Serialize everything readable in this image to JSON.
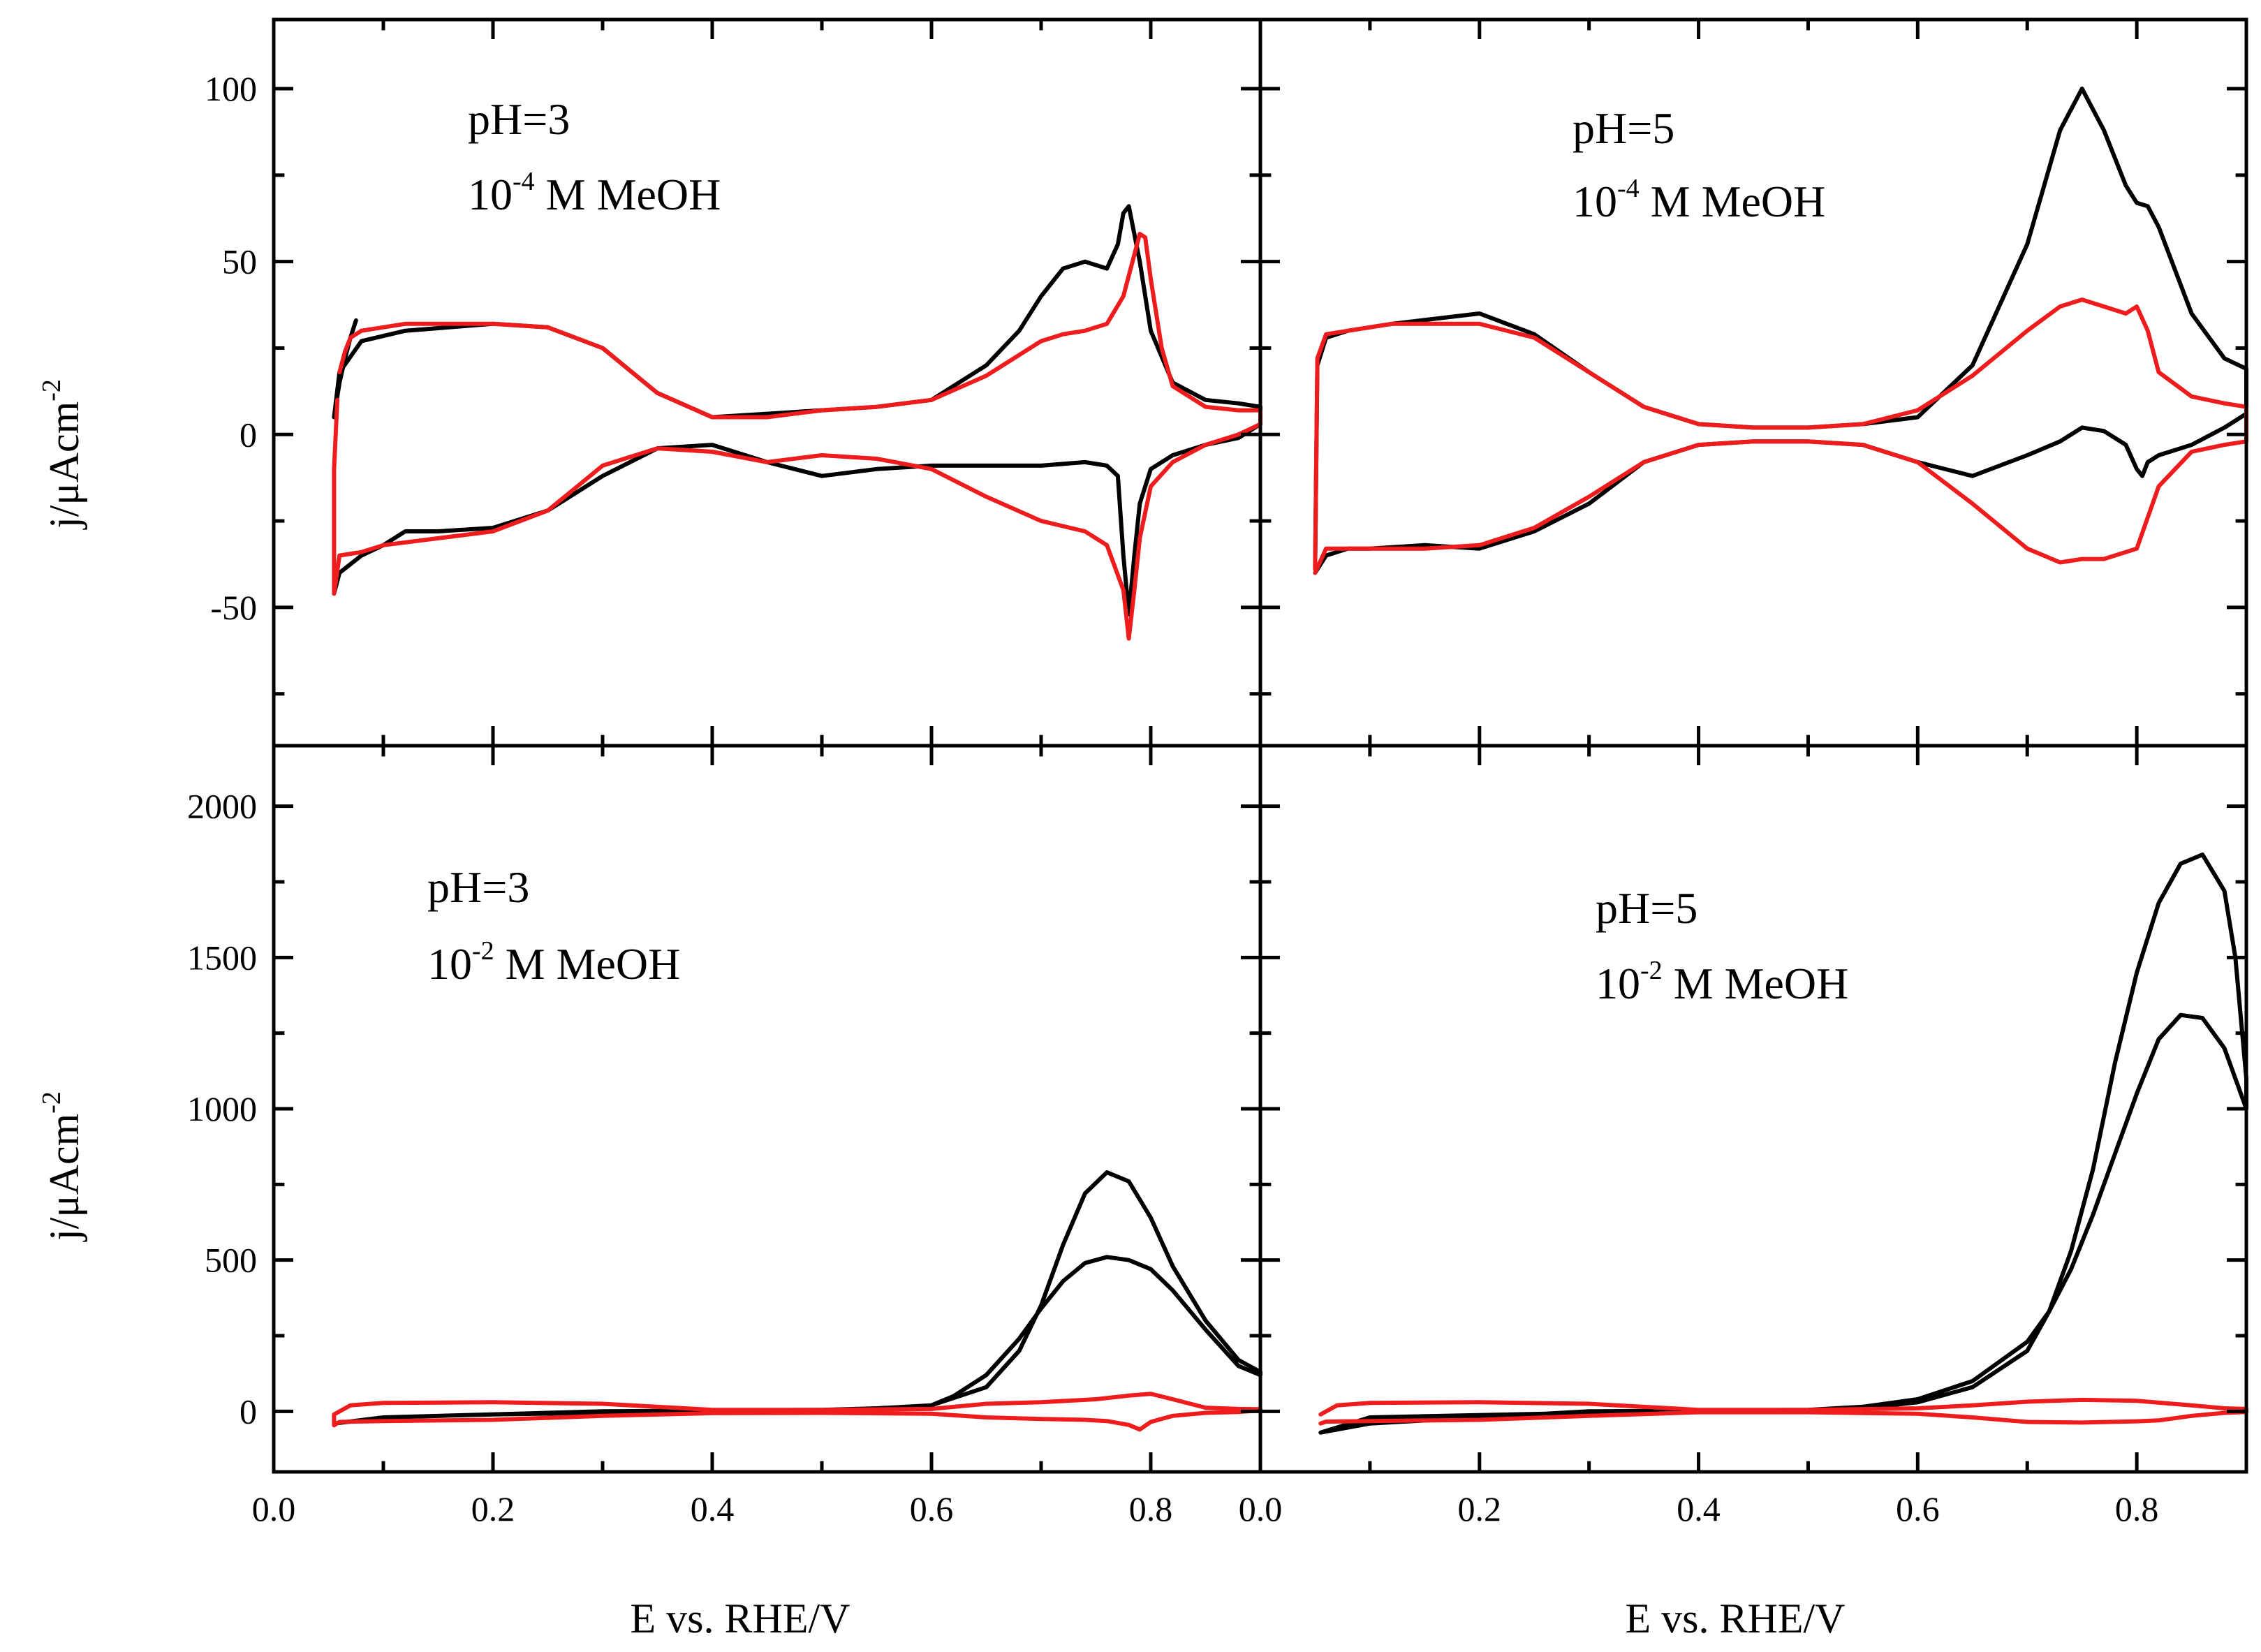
{
  "figure": {
    "x_axis_title": "E vs. RHE/V",
    "y_axis_title_main": "j/μAcm",
    "y_axis_title_sup": "-2"
  },
  "colors": {
    "series_a": "#000000",
    "series_b": "#ee1c1c"
  },
  "chart_data": [
    {
      "type": "line",
      "panel": "top-left",
      "label_line1": "pH=3",
      "label_line2_base": "10",
      "label_line2_sup": "-4",
      "label_line2_rest": " M MeOH",
      "xlim": [
        0.0,
        0.9
      ],
      "ylim": [
        -90,
        120
      ],
      "xticks": [],
      "xtick_labels": [],
      "yticks": [
        -50,
        0,
        50,
        100
      ],
      "ytick_labels": [
        "-50",
        "0",
        "50",
        "100"
      ],
      "series": [
        {
          "name": "black",
          "color": "#000000",
          "x": [
            0.075,
            0.07,
            0.065,
            0.06,
            0.055,
            0.06,
            0.08,
            0.12,
            0.2,
            0.25,
            0.3,
            0.35,
            0.4,
            0.45,
            0.5,
            0.55,
            0.6,
            0.65,
            0.68,
            0.7,
            0.72,
            0.74,
            0.76,
            0.77,
            0.775,
            0.78,
            0.79,
            0.8,
            0.82,
            0.85,
            0.88,
            0.9,
            0.9,
            0.88,
            0.85,
            0.82,
            0.8,
            0.79,
            0.785,
            0.78,
            0.775,
            0.77,
            0.76,
            0.74,
            0.7,
            0.65,
            0.6,
            0.55,
            0.5,
            0.45,
            0.4,
            0.35,
            0.3,
            0.25,
            0.2,
            0.15,
            0.12,
            0.1,
            0.08,
            0.06,
            0.055
          ],
          "y": [
            33,
            28,
            22,
            15,
            5,
            18,
            27,
            30,
            32,
            31,
            25,
            12,
            5,
            6,
            7,
            8,
            10,
            20,
            30,
            40,
            48,
            50,
            48,
            55,
            64,
            66,
            50,
            30,
            15,
            10,
            9,
            8,
            3,
            -1,
            -3,
            -6,
            -10,
            -20,
            -35,
            -52,
            -35,
            -12,
            -9,
            -8,
            -9,
            -9,
            -9,
            -10,
            -12,
            -8,
            -3,
            -4,
            -12,
            -22,
            -27,
            -28,
            -28,
            -32,
            -35,
            -40,
            -46
          ]
        },
        {
          "name": "red",
          "color": "#ee1c1c",
          "x": [
            0.06,
            0.065,
            0.07,
            0.08,
            0.12,
            0.2,
            0.25,
            0.3,
            0.35,
            0.4,
            0.45,
            0.5,
            0.55,
            0.6,
            0.65,
            0.68,
            0.7,
            0.72,
            0.74,
            0.76,
            0.775,
            0.785,
            0.79,
            0.795,
            0.8,
            0.81,
            0.82,
            0.85,
            0.88,
            0.9,
            0.9,
            0.88,
            0.85,
            0.82,
            0.8,
            0.79,
            0.785,
            0.78,
            0.775,
            0.76,
            0.74,
            0.7,
            0.65,
            0.6,
            0.55,
            0.5,
            0.45,
            0.4,
            0.35,
            0.3,
            0.25,
            0.2,
            0.15,
            0.1,
            0.08,
            0.06,
            0.055,
            0.055,
            0.058
          ],
          "y": [
            18,
            24,
            28,
            30,
            32,
            32,
            31,
            25,
            12,
            5,
            5,
            7,
            8,
            10,
            17,
            23,
            27,
            29,
            30,
            32,
            40,
            52,
            58,
            57,
            45,
            25,
            14,
            8,
            7,
            7,
            3,
            0,
            -3,
            -8,
            -15,
            -30,
            -45,
            -59,
            -45,
            -32,
            -28,
            -25,
            -18,
            -10,
            -7,
            -6,
            -8,
            -5,
            -4,
            -9,
            -22,
            -28,
            -30,
            -32,
            -34,
            -35,
            -46,
            -10,
            10
          ]
        }
      ]
    },
    {
      "type": "line",
      "panel": "top-right",
      "label_line1": "pH=5",
      "label_line2_base": "10",
      "label_line2_sup": "-4",
      "label_line2_rest": " M MeOH",
      "xlim": [
        0.0,
        0.9
      ],
      "ylim": [
        -90,
        120
      ],
      "xticks": [],
      "xtick_labels": [],
      "yticks": [
        -50,
        0,
        50,
        100
      ],
      "ytick_labels": [],
      "series": [
        {
          "name": "black",
          "color": "#000000",
          "x": [
            0.05,
            0.052,
            0.06,
            0.08,
            0.12,
            0.2,
            0.25,
            0.3,
            0.35,
            0.4,
            0.45,
            0.5,
            0.55,
            0.6,
            0.65,
            0.7,
            0.73,
            0.75,
            0.77,
            0.79,
            0.8,
            0.81,
            0.82,
            0.85,
            0.88,
            0.9,
            0.9,
            0.88,
            0.85,
            0.82,
            0.81,
            0.805,
            0.8,
            0.79,
            0.77,
            0.75,
            0.73,
            0.7,
            0.65,
            0.6,
            0.55,
            0.5,
            0.45,
            0.4,
            0.35,
            0.3,
            0.25,
            0.2,
            0.15,
            0.1,
            0.08,
            0.06,
            0.05
          ],
          "y": [
            -38,
            20,
            28,
            30,
            32,
            35,
            29,
            18,
            8,
            3,
            2,
            2,
            3,
            5,
            20,
            55,
            88,
            100,
            88,
            72,
            67,
            66,
            60,
            35,
            22,
            19,
            6,
            2,
            -3,
            -6,
            -8,
            -12,
            -10,
            -3,
            1,
            2,
            -2,
            -6,
            -12,
            -8,
            -3,
            -2,
            -2,
            -3,
            -8,
            -20,
            -28,
            -33,
            -32,
            -33,
            -33,
            -35,
            -40
          ]
        },
        {
          "name": "red",
          "color": "#ee1c1c",
          "x": [
            0.05,
            0.052,
            0.06,
            0.08,
            0.12,
            0.2,
            0.25,
            0.3,
            0.35,
            0.4,
            0.45,
            0.5,
            0.55,
            0.6,
            0.65,
            0.7,
            0.73,
            0.75,
            0.77,
            0.79,
            0.8,
            0.81,
            0.82,
            0.85,
            0.88,
            0.9,
            0.9,
            0.88,
            0.85,
            0.82,
            0.8,
            0.79,
            0.77,
            0.75,
            0.73,
            0.7,
            0.65,
            0.6,
            0.55,
            0.5,
            0.45,
            0.4,
            0.35,
            0.3,
            0.25,
            0.2,
            0.15,
            0.1,
            0.08,
            0.06,
            0.05
          ],
          "y": [
            -39,
            22,
            29,
            30,
            32,
            32,
            28,
            18,
            8,
            3,
            2,
            2,
            3,
            7,
            17,
            30,
            37,
            39,
            37,
            35,
            37,
            30,
            18,
            11,
            9,
            8,
            -2,
            -3,
            -5,
            -15,
            -33,
            -34,
            -36,
            -36,
            -37,
            -33,
            -20,
            -8,
            -3,
            -2,
            -2,
            -3,
            -8,
            -18,
            -27,
            -32,
            -33,
            -33,
            -33,
            -33,
            -40
          ]
        }
      ]
    },
    {
      "type": "line",
      "panel": "bottom-left",
      "label_line1": "pH=3",
      "label_line2_base": "10",
      "label_line2_sup": "-2",
      "label_line2_rest": " M MeOH",
      "xlim": [
        0.0,
        0.9
      ],
      "ylim": [
        -200,
        2200
      ],
      "xticks": [
        0.0,
        0.2,
        0.4,
        0.6,
        0.8
      ],
      "xtick_labels": [
        "0.0",
        "0.2",
        "0.4",
        "0.6",
        "0.8"
      ],
      "yticks": [
        0,
        500,
        1000,
        1500,
        2000
      ],
      "ytick_labels": [
        "0",
        "500",
        "1000",
        "1500",
        "2000"
      ],
      "series": [
        {
          "name": "black",
          "color": "#000000",
          "x": [
            0.08,
            0.055,
            0.1,
            0.3,
            0.5,
            0.55,
            0.6,
            0.65,
            0.68,
            0.7,
            0.72,
            0.74,
            0.76,
            0.78,
            0.8,
            0.82,
            0.85,
            0.88,
            0.9,
            0.9,
            0.88,
            0.85,
            0.82,
            0.8,
            0.78,
            0.76,
            0.74,
            0.72,
            0.7,
            0.68,
            0.65,
            0.62,
            0.6,
            0.55,
            0.5,
            0.4,
            0.3,
            0.2,
            0.1,
            0.055
          ],
          "y": [
            -30,
            -40,
            -20,
            0,
            5,
            10,
            20,
            80,
            200,
            350,
            550,
            720,
            790,
            760,
            640,
            480,
            300,
            170,
            130,
            120,
            150,
            270,
            400,
            470,
            500,
            510,
            490,
            430,
            340,
            240,
            120,
            50,
            20,
            5,
            2,
            0,
            -5,
            -10,
            -20,
            -40
          ]
        },
        {
          "name": "red",
          "color": "#ee1c1c",
          "x": [
            0.055,
            0.07,
            0.1,
            0.2,
            0.3,
            0.4,
            0.5,
            0.6,
            0.65,
            0.7,
            0.75,
            0.78,
            0.8,
            0.82,
            0.85,
            0.88,
            0.9,
            0.9,
            0.88,
            0.85,
            0.82,
            0.8,
            0.79,
            0.78,
            0.76,
            0.74,
            0.7,
            0.65,
            0.6,
            0.5,
            0.4,
            0.3,
            0.2,
            0.1,
            0.06,
            0.055,
            0.055
          ],
          "y": [
            -10,
            20,
            28,
            30,
            25,
            5,
            5,
            8,
            25,
            30,
            40,
            52,
            58,
            40,
            12,
            8,
            7,
            3,
            -2,
            -5,
            -15,
            -35,
            -60,
            -45,
            -32,
            -28,
            -25,
            -20,
            -8,
            -5,
            -6,
            -15,
            -28,
            -32,
            -35,
            -46,
            -10
          ]
        }
      ]
    },
    {
      "type": "line",
      "panel": "bottom-right",
      "label_line1": "pH=5",
      "label_line2_base": "10",
      "label_line2_sup": "-2",
      "label_line2_rest": " M MeOH",
      "xlim": [
        0.0,
        0.9
      ],
      "ylim": [
        -200,
        2200
      ],
      "xticks": [
        0.0,
        0.2,
        0.4,
        0.6,
        0.8
      ],
      "xtick_labels": [
        "0.0",
        "0.2",
        "0.4",
        "0.6",
        "0.8"
      ],
      "yticks": [
        0,
        500,
        1000,
        1500,
        2000
      ],
      "ytick_labels": [],
      "series": [
        {
          "name": "black",
          "color": "#000000",
          "x": [
            0.09,
            0.055,
            0.1,
            0.3,
            0.5,
            0.55,
            0.6,
            0.65,
            0.7,
            0.72,
            0.74,
            0.76,
            0.78,
            0.8,
            0.82,
            0.84,
            0.86,
            0.88,
            0.89,
            0.9,
            0.9,
            0.89,
            0.88,
            0.86,
            0.84,
            0.82,
            0.8,
            0.78,
            0.76,
            0.74,
            0.72,
            0.7,
            0.65,
            0.6,
            0.55,
            0.5,
            0.3,
            0.1,
            0.055
          ],
          "y": [
            -40,
            -70,
            -40,
            0,
            5,
            10,
            30,
            80,
            200,
            330,
            530,
            800,
            1150,
            1450,
            1680,
            1810,
            1840,
            1720,
            1500,
            1100,
            1000,
            1100,
            1200,
            1300,
            1310,
            1230,
            1050,
            850,
            650,
            470,
            330,
            230,
            100,
            40,
            15,
            5,
            -5,
            -20,
            -70
          ]
        },
        {
          "name": "red",
          "color": "#ee1c1c",
          "x": [
            0.055,
            0.07,
            0.1,
            0.2,
            0.3,
            0.4,
            0.5,
            0.6,
            0.65,
            0.7,
            0.75,
            0.8,
            0.85,
            0.88,
            0.9,
            0.9,
            0.88,
            0.85,
            0.82,
            0.8,
            0.75,
            0.7,
            0.65,
            0.6,
            0.5,
            0.4,
            0.3,
            0.2,
            0.1,
            0.06,
            0.055
          ],
          "y": [
            -10,
            20,
            28,
            30,
            25,
            5,
            5,
            10,
            20,
            32,
            38,
            35,
            20,
            10,
            8,
            -2,
            -5,
            -15,
            -30,
            -33,
            -37,
            -35,
            -20,
            -8,
            -3,
            -3,
            -15,
            -28,
            -32,
            -34,
            -40
          ]
        }
      ]
    }
  ]
}
